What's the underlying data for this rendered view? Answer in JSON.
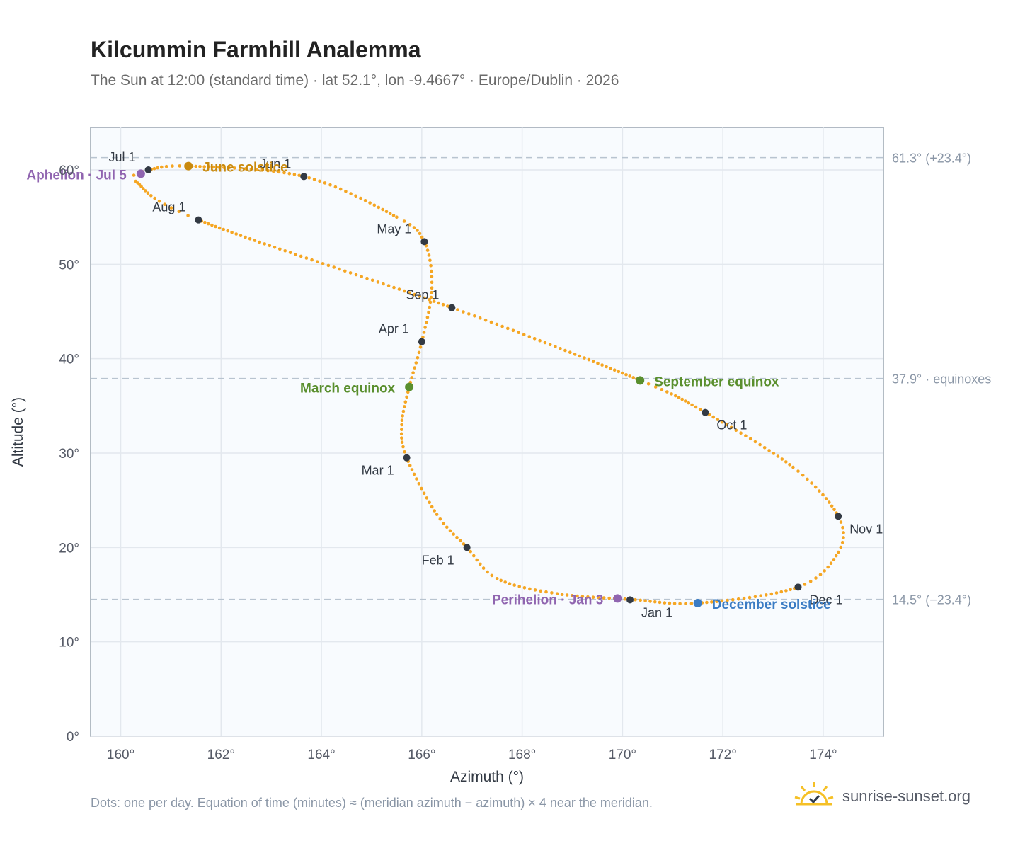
{
  "title": "Kilcummin Farmhill Analemma",
  "subtitle": "The Sun at 12:00 (standard time) · lat 52.1°, lon -9.4667° · Europe/Dublin · 2026",
  "footnote": "Dots: one per day. Equation of time (minutes) ≈ (meridian azimuth − azimuth) × 4 near the meridian.",
  "brand": "sunrise-sunset.org",
  "colors": {
    "curve": "#f5a623",
    "month_marker": "#333a44",
    "june_solstice": "#c98a0e",
    "december_solstice": "#3b7cc4",
    "equinox": "#5a8f2e",
    "apsis": "#9065b0",
    "reference_line": "#b8c4d0",
    "plot_bg": "#f8fbfe"
  },
  "chart_data": {
    "type": "scatter",
    "title": "Kilcummin Farmhill Analemma",
    "xlabel": "Azimuth (°)",
    "ylabel": "Altitude (°)",
    "xlim": [
      159.4,
      175.2
    ],
    "ylim": [
      0,
      64.5
    ],
    "xticks": [
      160,
      162,
      164,
      166,
      168,
      170,
      172,
      174
    ],
    "xtick_labels": [
      "160°",
      "162°",
      "164°",
      "166°",
      "168°",
      "170°",
      "172°",
      "174°"
    ],
    "yticks": [
      0,
      10,
      20,
      30,
      40,
      50,
      60
    ],
    "ytick_labels": [
      "0°",
      "10°",
      "20°",
      "30°",
      "40°",
      "50°",
      "60°"
    ],
    "grid": true,
    "series": [
      {
        "points": [
          [
            170.15,
            14.5
          ],
          [
            168.7,
            15.1
          ],
          [
            167.5,
            16.7
          ],
          [
            166.9,
            20.0
          ],
          [
            166.3,
            23.5
          ],
          [
            165.7,
            29.5
          ],
          [
            165.6,
            33.0
          ],
          [
            165.75,
            37.0
          ],
          [
            166.0,
            41.8
          ],
          [
            166.2,
            47.5
          ],
          [
            166.05,
            52.4
          ],
          [
            165.5,
            55.0
          ],
          [
            163.65,
            59.3
          ],
          [
            161.35,
            60.4
          ],
          [
            160.55,
            60.0
          ],
          [
            160.4,
            59.6
          ],
          [
            160.3,
            58.8
          ],
          [
            161.55,
            54.7
          ],
          [
            166.6,
            45.4
          ],
          [
            170.35,
            37.7
          ],
          [
            171.65,
            34.3
          ],
          [
            173.4,
            28.5
          ],
          [
            174.3,
            23.3
          ],
          [
            174.3,
            19.5
          ],
          [
            173.5,
            15.8
          ],
          [
            171.5,
            14.1
          ],
          [
            170.15,
            14.5
          ]
        ]
      }
    ],
    "month_markers": [
      {
        "label": "Jan 1",
        "az": 170.15,
        "alt": 14.45
      },
      {
        "label": "Feb 1",
        "az": 166.9,
        "alt": 20.0
      },
      {
        "label": "Mar 1",
        "az": 165.7,
        "alt": 29.5
      },
      {
        "label": "Apr 1",
        "az": 166.0,
        "alt": 41.8
      },
      {
        "label": "May 1",
        "az": 166.05,
        "alt": 52.4
      },
      {
        "label": "Jun 1",
        "az": 163.65,
        "alt": 59.3
      },
      {
        "label": "Jul 1",
        "az": 160.55,
        "alt": 60.0
      },
      {
        "label": "Aug 1",
        "az": 161.55,
        "alt": 54.7
      },
      {
        "label": "Sep 1",
        "az": 166.6,
        "alt": 45.4
      },
      {
        "label": "Oct 1",
        "az": 171.65,
        "alt": 34.3
      },
      {
        "label": "Nov 1",
        "az": 174.3,
        "alt": 23.3
      },
      {
        "label": "Dec 1",
        "az": 173.5,
        "alt": 15.8
      }
    ],
    "events": [
      {
        "label": "June solstice",
        "az": 161.35,
        "alt": 60.4,
        "kind": "june_solstice"
      },
      {
        "label": "December solstice",
        "az": 171.5,
        "alt": 14.1,
        "kind": "december_solstice"
      },
      {
        "label": "March equinox",
        "az": 165.75,
        "alt": 37.0,
        "kind": "equinox"
      },
      {
        "label": "September equinox",
        "az": 170.35,
        "alt": 37.7,
        "kind": "equinox"
      },
      {
        "label": "Aphelion · Jul 5",
        "az": 160.4,
        "alt": 59.6,
        "kind": "apsis"
      },
      {
        "label": "Perihelion · Jan 3",
        "az": 169.9,
        "alt": 14.6,
        "kind": "apsis"
      }
    ],
    "reference_lines": [
      {
        "alt": 61.3,
        "label": "61.3° (+23.4°)"
      },
      {
        "alt": 37.9,
        "label": "37.9° · equinoxes"
      },
      {
        "alt": 14.5,
        "label": "14.5° (−23.4°)"
      }
    ]
  }
}
